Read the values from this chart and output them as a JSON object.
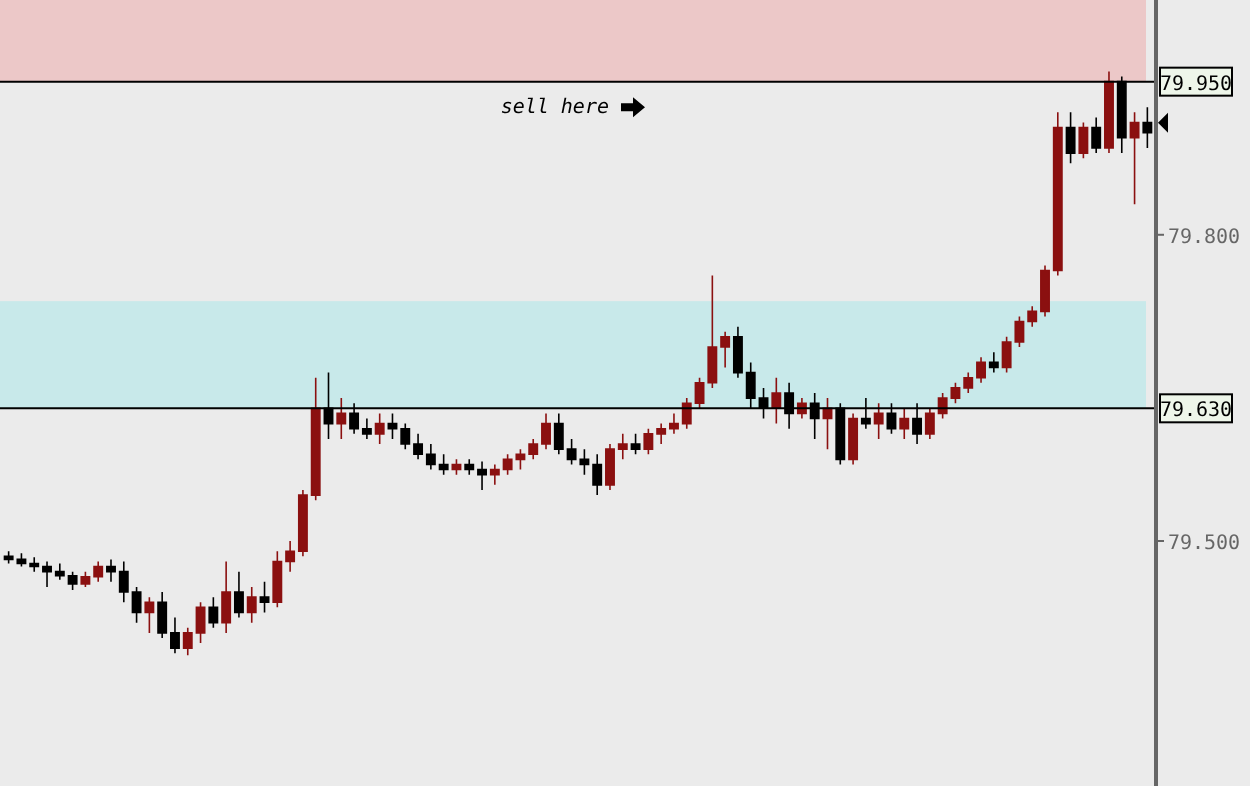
{
  "chart_data": {
    "type": "candlestick",
    "categories": [
      null,
      null,
      null,
      null,
      null,
      null,
      null,
      null,
      null,
      null,
      null,
      null,
      null,
      null,
      null,
      null,
      null,
      null,
      null,
      null,
      null,
      null,
      null,
      null,
      null,
      null,
      null,
      null,
      null,
      null,
      null,
      null,
      null,
      null,
      null,
      null,
      null,
      null,
      null,
      null,
      null,
      null,
      null,
      null,
      null,
      null,
      null,
      null,
      null,
      null,
      null,
      null,
      null,
      null,
      null,
      null,
      null,
      null,
      null,
      null,
      null,
      null,
      null,
      null,
      null,
      null,
      null,
      null,
      null,
      null,
      null,
      null,
      null,
      null,
      null,
      null,
      null,
      null,
      null,
      null,
      null,
      null,
      null,
      null,
      null,
      null,
      null,
      null,
      null,
      null
    ],
    "ohlc": [
      [
        79.485,
        79.49,
        79.478,
        79.482
      ],
      [
        79.482,
        79.488,
        79.475,
        79.478
      ],
      [
        79.478,
        79.484,
        79.47,
        79.475
      ],
      [
        79.475,
        79.48,
        79.455,
        79.47
      ],
      [
        79.47,
        79.478,
        79.462,
        79.466
      ],
      [
        79.466,
        79.47,
        79.452,
        79.458
      ],
      [
        79.458,
        79.47,
        79.455,
        79.465
      ],
      [
        79.465,
        79.48,
        79.46,
        79.475
      ],
      [
        79.475,
        79.482,
        79.46,
        79.47
      ],
      [
        79.47,
        79.48,
        79.44,
        79.45
      ],
      [
        79.45,
        79.455,
        79.42,
        79.43
      ],
      [
        79.43,
        79.445,
        79.41,
        79.44
      ],
      [
        79.44,
        79.45,
        79.405,
        79.41
      ],
      [
        79.41,
        79.425,
        79.39,
        79.395
      ],
      [
        79.395,
        79.415,
        79.388,
        79.41
      ],
      [
        79.41,
        79.44,
        79.4,
        79.435
      ],
      [
        79.435,
        79.445,
        79.415,
        79.42
      ],
      [
        79.42,
        79.48,
        79.41,
        79.45
      ],
      [
        79.45,
        79.47,
        79.425,
        79.43
      ],
      [
        79.43,
        79.455,
        79.42,
        79.445
      ],
      [
        79.445,
        79.46,
        79.43,
        79.44
      ],
      [
        79.44,
        79.49,
        79.435,
        79.48
      ],
      [
        79.48,
        79.5,
        79.47,
        79.49
      ],
      [
        79.49,
        79.55,
        79.485,
        79.545
      ],
      [
        79.545,
        79.66,
        79.54,
        79.63
      ],
      [
        79.63,
        79.665,
        79.6,
        79.615
      ],
      [
        79.615,
        79.64,
        79.6,
        79.625
      ],
      [
        79.625,
        79.635,
        79.605,
        79.61
      ],
      [
        79.61,
        79.62,
        79.6,
        79.605
      ],
      [
        79.605,
        79.625,
        79.595,
        79.615
      ],
      [
        79.615,
        79.625,
        79.6,
        79.61
      ],
      [
        79.61,
        79.615,
        79.59,
        79.595
      ],
      [
        79.595,
        79.605,
        79.58,
        79.585
      ],
      [
        79.585,
        79.595,
        79.57,
        79.575
      ],
      [
        79.575,
        79.585,
        79.565,
        79.57
      ],
      [
        79.57,
        79.58,
        79.565,
        79.575
      ],
      [
        79.575,
        79.58,
        79.565,
        79.57
      ],
      [
        79.57,
        79.578,
        79.55,
        79.565
      ],
      [
        79.565,
        79.575,
        79.555,
        79.57
      ],
      [
        79.57,
        79.585,
        79.565,
        79.58
      ],
      [
        79.58,
        79.59,
        79.57,
        79.585
      ],
      [
        79.585,
        79.6,
        79.58,
        79.595
      ],
      [
        79.595,
        79.625,
        79.59,
        79.615
      ],
      [
        79.615,
        79.625,
        79.585,
        79.59
      ],
      [
        79.59,
        79.6,
        79.575,
        79.58
      ],
      [
        79.58,
        79.59,
        79.565,
        79.575
      ],
      [
        79.575,
        79.585,
        79.545,
        79.555
      ],
      [
        79.555,
        79.595,
        79.55,
        79.59
      ],
      [
        79.59,
        79.605,
        79.58,
        79.595
      ],
      [
        79.595,
        79.605,
        79.585,
        79.59
      ],
      [
        79.59,
        79.61,
        79.585,
        79.605
      ],
      [
        79.605,
        79.615,
        79.595,
        79.61
      ],
      [
        79.61,
        79.625,
        79.605,
        79.615
      ],
      [
        79.615,
        79.64,
        79.61,
        79.635
      ],
      [
        79.635,
        79.66,
        79.63,
        79.655
      ],
      [
        79.655,
        79.76,
        79.65,
        79.69
      ],
      [
        79.69,
        79.705,
        79.67,
        79.7
      ],
      [
        79.7,
        79.71,
        79.66,
        79.665
      ],
      [
        79.665,
        79.675,
        79.63,
        79.64
      ],
      [
        79.64,
        79.65,
        79.62,
        79.63
      ],
      [
        79.63,
        79.66,
        79.615,
        79.645
      ],
      [
        79.645,
        79.655,
        79.61,
        79.625
      ],
      [
        79.625,
        79.64,
        79.62,
        79.635
      ],
      [
        79.635,
        79.645,
        79.6,
        79.62
      ],
      [
        79.62,
        79.64,
        79.59,
        79.63
      ],
      [
        79.63,
        79.635,
        79.575,
        79.58
      ],
      [
        79.58,
        79.625,
        79.575,
        79.62
      ],
      [
        79.62,
        79.64,
        79.61,
        79.615
      ],
      [
        79.615,
        79.635,
        79.6,
        79.625
      ],
      [
        79.625,
        79.635,
        79.605,
        79.61
      ],
      [
        79.61,
        79.63,
        79.6,
        79.62
      ],
      [
        79.62,
        79.635,
        79.595,
        79.605
      ],
      [
        79.605,
        79.63,
        79.6,
        79.625
      ],
      [
        79.625,
        79.645,
        79.62,
        79.64
      ],
      [
        79.64,
        79.655,
        79.635,
        79.65
      ],
      [
        79.65,
        79.665,
        79.645,
        79.66
      ],
      [
        79.66,
        79.68,
        79.655,
        79.675
      ],
      [
        79.675,
        79.685,
        79.665,
        79.67
      ],
      [
        79.67,
        79.7,
        79.665,
        79.695
      ],
      [
        79.695,
        79.72,
        79.69,
        79.715
      ],
      [
        79.715,
        79.73,
        79.71,
        79.725
      ],
      [
        79.725,
        79.77,
        79.72,
        79.765
      ],
      [
        79.765,
        79.92,
        79.76,
        79.905
      ],
      [
        79.905,
        79.92,
        79.87,
        79.88
      ],
      [
        79.88,
        79.91,
        79.875,
        79.905
      ],
      [
        79.905,
        79.915,
        79.88,
        79.885
      ],
      [
        79.885,
        79.96,
        79.88,
        79.95
      ],
      [
        79.95,
        79.955,
        79.88,
        79.895
      ],
      [
        79.895,
        79.92,
        79.83,
        79.91
      ],
      [
        79.91,
        79.925,
        79.885,
        79.9
      ]
    ],
    "colors": [
      "#000000",
      "#000000",
      "#000000",
      "#000000",
      "#000000",
      "#000000",
      "#8b1010",
      "#8b1010",
      "#000000",
      "#000000",
      "#000000",
      "#8b1010",
      "#000000",
      "#000000",
      "#8b1010",
      "#8b1010",
      "#000000",
      "#8b1010",
      "#000000",
      "#8b1010",
      "#000000",
      "#8b1010",
      "#8b1010",
      "#8b1010",
      "#8b1010",
      "#000000",
      "#8b1010",
      "#000000",
      "#000000",
      "#8b1010",
      "#000000",
      "#000000",
      "#000000",
      "#000000",
      "#000000",
      "#8b1010",
      "#000000",
      "#000000",
      "#8b1010",
      "#8b1010",
      "#8b1010",
      "#8b1010",
      "#8b1010",
      "#000000",
      "#000000",
      "#000000",
      "#000000",
      "#8b1010",
      "#8b1010",
      "#000000",
      "#8b1010",
      "#8b1010",
      "#8b1010",
      "#8b1010",
      "#8b1010",
      "#8b1010",
      "#8b1010",
      "#000000",
      "#000000",
      "#000000",
      "#8b1010",
      "#000000",
      "#8b1010",
      "#000000",
      "#8b1010",
      "#000000",
      "#8b1010",
      "#000000",
      "#8b1010",
      "#000000",
      "#8b1010",
      "#000000",
      "#8b1010",
      "#8b1010",
      "#8b1010",
      "#8b1010",
      "#8b1010",
      "#000000",
      "#8b1010",
      "#8b1010",
      "#8b1010",
      "#8b1010",
      "#8b1010",
      "#000000",
      "#8b1010",
      "#000000",
      "#8b1010",
      "#000000",
      "#8b1010",
      "#000000"
    ],
    "ylim": [
      79.26,
      80.03
    ],
    "yticks": [
      {
        "value": 79.8,
        "label": "79.800"
      },
      {
        "value": 79.5,
        "label": "79.500"
      }
    ],
    "ref_lines": [
      {
        "axis": "y",
        "value": 79.95,
        "label": "79.950",
        "color": "#000000"
      },
      {
        "axis": "y",
        "value": 79.63,
        "label": "79.630",
        "color": "#000000"
      }
    ],
    "bands": [
      {
        "axis": "y",
        "from": 79.95,
        "to": 80.03,
        "color": "#ecc8c8"
      },
      {
        "axis": "y",
        "from": 79.63,
        "to": 79.735,
        "color": "#c8e9ea"
      }
    ],
    "annotations": [
      "sell here"
    ],
    "grid": false
  }
}
